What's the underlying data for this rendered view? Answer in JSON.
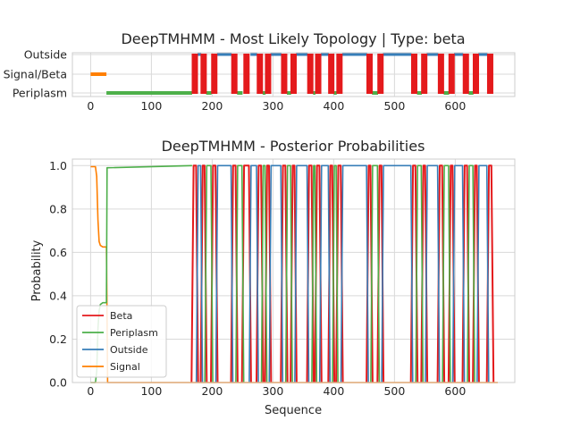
{
  "figure": {
    "top_title": "DeepTMHMM - Most Likely Topology | Type: beta",
    "bottom_title": "DeepTMHMM - Posterior Probabilities"
  },
  "chart_data": [
    {
      "type": "line",
      "title": "DeepTMHMM - Most Likely Topology | Type: beta",
      "xlabel": "",
      "ylabel": "",
      "xlim": [
        -30,
        698
      ],
      "x_ticks": [
        0,
        100,
        200,
        300,
        400,
        500,
        600
      ],
      "y_categories": [
        "Periplasm",
        "Signal/Beta",
        "Outside"
      ],
      "grid": true,
      "colors": {
        "beta": "#e41a1c",
        "periplasm": "#4daf4a",
        "outside": "#377eb8",
        "signal": "#ff7f00"
      },
      "signal_segment": [
        0,
        26
      ],
      "periplasm_segments": [
        [
          26,
          167
        ],
        [
          190,
          199
        ],
        [
          241,
          250
        ],
        [
          283,
          288
        ],
        [
          323,
          330
        ],
        [
          366,
          370
        ],
        [
          400,
          405
        ],
        [
          463,
          473
        ],
        [
          537,
          545
        ],
        [
          581,
          590
        ],
        [
          622,
          630
        ]
      ],
      "outside_segments": [
        [
          176,
          182
        ],
        [
          208,
          232
        ],
        [
          263,
          274
        ],
        [
          296,
          314
        ],
        [
          338,
          357
        ],
        [
          379,
          392
        ],
        [
          414,
          455
        ],
        [
          481,
          528
        ],
        [
          553,
          572
        ],
        [
          598,
          613
        ],
        [
          638,
          653
        ]
      ],
      "beta_strands": [
        [
          167,
          176
        ],
        [
          182,
          190
        ],
        [
          199,
          208
        ],
        [
          232,
          241
        ],
        [
          250,
          263
        ],
        [
          274,
          283
        ],
        [
          288,
          296
        ],
        [
          314,
          323
        ],
        [
          330,
          338
        ],
        [
          357,
          366
        ],
        [
          370,
          379
        ],
        [
          392,
          400
        ],
        [
          405,
          414
        ],
        [
          455,
          463
        ],
        [
          473,
          481
        ],
        [
          528,
          537
        ],
        [
          545,
          553
        ],
        [
          572,
          581
        ],
        [
          590,
          598
        ],
        [
          613,
          622
        ],
        [
          630,
          638
        ],
        [
          653,
          662
        ]
      ]
    },
    {
      "type": "line",
      "title": "DeepTMHMM - Posterior Probabilities",
      "xlabel": "Sequence",
      "ylabel": "Probability",
      "xlim": [
        -30,
        698
      ],
      "ylim": [
        0,
        1.03
      ],
      "x_ticks": [
        0,
        100,
        200,
        300,
        400,
        500,
        600
      ],
      "y_ticks": [
        "0.0",
        "0.2",
        "0.4",
        "0.6",
        "0.8",
        "1.0"
      ],
      "grid": true,
      "legend_position": "lower-left",
      "series": [
        {
          "name": "Beta",
          "color": "#e41a1c"
        },
        {
          "name": "Periplasm",
          "color": "#4daf4a"
        },
        {
          "name": "Outside",
          "color": "#377eb8"
        },
        {
          "name": "Signal",
          "color": "#ff7f00"
        }
      ],
      "signal_curve": [
        [
          0,
          0.995
        ],
        [
          8,
          0.995
        ],
        [
          10,
          0.95
        ],
        [
          12,
          0.75
        ],
        [
          14,
          0.65
        ],
        [
          16,
          0.632
        ],
        [
          20,
          0.625
        ],
        [
          26,
          0.625
        ],
        [
          28,
          0.0
        ],
        [
          670,
          0.0
        ]
      ],
      "periplasm_start_curve": [
        [
          0,
          0.0
        ],
        [
          8,
          0.0
        ],
        [
          10,
          0.05
        ],
        [
          12,
          0.25
        ],
        [
          14,
          0.33
        ],
        [
          16,
          0.36
        ],
        [
          20,
          0.368
        ],
        [
          26,
          0.368
        ],
        [
          27,
          0.99
        ],
        [
          167,
          1.0
        ]
      ]
    }
  ]
}
